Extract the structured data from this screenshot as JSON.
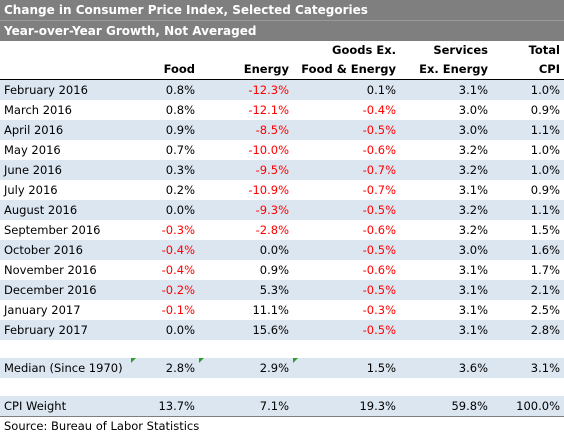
{
  "title_line1": "Change in Consumer Price Index, Selected Categories",
  "title_line2": "Year-over-Year Growth, Not Averaged",
  "headers_top": [
    "",
    "",
    "",
    "Goods Ex.",
    "Services",
    "Total"
  ],
  "headers_bottom": [
    "",
    "Food",
    "Energy",
    "Food & Energy",
    "Ex. Energy",
    "CPI"
  ],
  "rows": [
    {
      "month": "February 2016",
      "food": "0.8%",
      "energy": "-12.3%",
      "goods": "0.1%",
      "services": "3.1%",
      "cpi": "1.0%"
    },
    {
      "month": "March 2016",
      "food": "0.8%",
      "energy": "-12.1%",
      "goods": "-0.4%",
      "services": "3.0%",
      "cpi": "0.9%"
    },
    {
      "month": "April 2016",
      "food": "0.9%",
      "energy": "-8.5%",
      "goods": "-0.5%",
      "services": "3.0%",
      "cpi": "1.1%"
    },
    {
      "month": "May 2016",
      "food": "0.7%",
      "energy": "-10.0%",
      "goods": "-0.6%",
      "services": "3.2%",
      "cpi": "1.0%"
    },
    {
      "month": "June 2016",
      "food": "0.3%",
      "energy": "-9.5%",
      "goods": "-0.7%",
      "services": "3.2%",
      "cpi": "1.0%"
    },
    {
      "month": "July 2016",
      "food": "0.2%",
      "energy": "-10.9%",
      "goods": "-0.7%",
      "services": "3.1%",
      "cpi": "0.9%"
    },
    {
      "month": "August 2016",
      "food": "0.0%",
      "energy": "-9.3%",
      "goods": "-0.5%",
      "services": "3.2%",
      "cpi": "1.1%"
    },
    {
      "month": "September 2016",
      "food": "-0.3%",
      "energy": "-2.8%",
      "goods": "-0.6%",
      "services": "3.2%",
      "cpi": "1.5%"
    },
    {
      "month": "October 2016",
      "food": "-0.4%",
      "energy": "0.0%",
      "goods": "-0.5%",
      "services": "3.0%",
      "cpi": "1.6%"
    },
    {
      "month": "November 2016",
      "food": "-0.4%",
      "energy": "0.9%",
      "goods": "-0.6%",
      "services": "3.1%",
      "cpi": "1.7%"
    },
    {
      "month": "December 2016",
      "food": "-0.2%",
      "energy": "5.3%",
      "goods": "-0.5%",
      "services": "3.1%",
      "cpi": "2.1%"
    },
    {
      "month": "January 2017",
      "food": "-0.1%",
      "energy": "11.1%",
      "goods": "-0.3%",
      "services": "3.1%",
      "cpi": "2.5%"
    },
    {
      "month": "February 2017",
      "food": "0.0%",
      "energy": "15.6%",
      "goods": "-0.5%",
      "services": "3.1%",
      "cpi": "2.8%"
    }
  ],
  "median": {
    "label": "Median (Since 1970)",
    "food": "2.8%",
    "energy": "2.9%",
    "goods": "1.5%",
    "services": "3.6%",
    "cpi": "3.1%"
  },
  "weight": {
    "label": "CPI Weight",
    "food": "13.7%",
    "energy": "7.1%",
    "goods": "19.3%",
    "services": "59.8%",
    "cpi": "100.0%"
  },
  "source": "Source: Bureau of Labor Statistics",
  "colors": {
    "title_bg": "#7f7f7f",
    "band": "#dce6f1",
    "negative": "#ff0000",
    "comment_marker": "#2e9b2e"
  }
}
